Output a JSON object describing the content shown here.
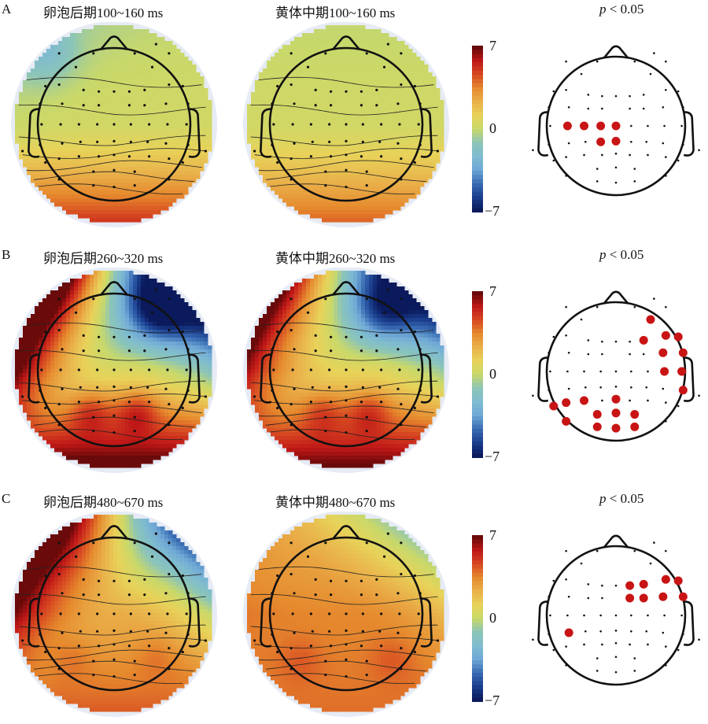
{
  "chart_data": {
    "type": "heatmap",
    "description": "EEG scalp topographic maps (t-values) comparing 卵泡后期 and 黄体中期 across three time windows, with significance maps",
    "colorbar": {
      "min": -7,
      "max": 7,
      "ticks": [
        7,
        0,
        -7
      ],
      "tick_labels": [
        "7",
        "0",
        "−7"
      ],
      "colormap": "jet-like (blue→cyan→yellow→red)"
    },
    "colormap_stops": [
      "#0b1a5c",
      "#1b3f8f",
      "#3a6db4",
      "#6fa8d6",
      "#80bcd0",
      "#8cc5b8",
      "#c9d96a",
      "#e8d35a",
      "#eab14a",
      "#e68a2e",
      "#d84a22",
      "#c01818",
      "#6a0a0a"
    ],
    "electrode_layout_unit": [
      [
        0.55,
        -1.05
      ],
      [
        -0.72,
        -0.93
      ],
      [
        -0.27,
        -0.93
      ],
      [
        0.27,
        -0.93
      ],
      [
        0.72,
        -0.93
      ],
      [
        -0.5,
        -0.75
      ],
      [
        0.5,
        -0.75
      ],
      [
        -0.9,
        -0.5
      ],
      [
        -0.72,
        -0.52
      ],
      [
        -0.4,
        -0.45
      ],
      [
        -0.2,
        -0.43
      ],
      [
        0.0,
        -0.43
      ],
      [
        0.2,
        -0.43
      ],
      [
        0.4,
        -0.45
      ],
      [
        0.72,
        -0.52
      ],
      [
        0.9,
        -0.5
      ],
      [
        -0.97,
        -0.27
      ],
      [
        -0.68,
        -0.27
      ],
      [
        -0.4,
        -0.25
      ],
      [
        -0.2,
        -0.25
      ],
      [
        0.2,
        -0.25
      ],
      [
        0.4,
        -0.25
      ],
      [
        0.68,
        -0.27
      ],
      [
        0.97,
        -0.27
      ],
      [
        -0.95,
        0.0
      ],
      [
        -0.7,
        0.0
      ],
      [
        -0.46,
        0.0
      ],
      [
        -0.22,
        0.0
      ],
      [
        0.0,
        0.0
      ],
      [
        0.22,
        0.0
      ],
      [
        0.46,
        0.0
      ],
      [
        0.7,
        0.0
      ],
      [
        0.95,
        0.0
      ],
      [
        -0.97,
        0.27
      ],
      [
        -0.68,
        0.25
      ],
      [
        -0.44,
        0.23
      ],
      [
        -0.22,
        0.23
      ],
      [
        0.0,
        0.22
      ],
      [
        0.22,
        0.23
      ],
      [
        0.44,
        0.23
      ],
      [
        0.68,
        0.25
      ],
      [
        0.97,
        0.27
      ],
      [
        -1.2,
        0.35
      ],
      [
        1.2,
        0.35
      ],
      [
        -0.9,
        0.5
      ],
      [
        -0.72,
        0.45
      ],
      [
        -0.46,
        0.42
      ],
      [
        -0.2,
        0.42
      ],
      [
        0.0,
        0.4
      ],
      [
        0.2,
        0.42
      ],
      [
        0.46,
        0.42
      ],
      [
        0.72,
        0.45
      ],
      [
        0.9,
        0.5
      ],
      [
        -0.72,
        0.72
      ],
      [
        -0.27,
        0.62
      ],
      [
        0.0,
        0.6
      ],
      [
        0.27,
        0.62
      ],
      [
        0.72,
        0.72
      ],
      [
        -0.27,
        0.8
      ],
      [
        0.0,
        0.82
      ],
      [
        0.27,
        0.8
      ]
    ],
    "rows": [
      {
        "label": "A",
        "maps": [
          {
            "title": "卵泡后期100~160 ms",
            "field": {
              "front": 0.0,
              "center": 0.05,
              "back": 0.55,
              "left_front": -0.05,
              "right_front": 0.0,
              "hot_spots": [],
              "cold_spots": [
                [
                  -0.9,
                  -0.95,
                  0.25
                ]
              ]
            }
          },
          {
            "title": "黄体中期100~160 ms",
            "field": {
              "front": 0.0,
              "center": 0.05,
              "back": 0.45,
              "left_front": 0.0,
              "right_front": 0.0,
              "hot_spots": [],
              "cold_spots": []
            }
          }
        ],
        "significance": {
          "title_prefix": "p",
          "title_rest": " < 0.05",
          "significant_indices": [
            25,
            26,
            27,
            28,
            36,
            37
          ]
        }
      },
      {
        "label": "B",
        "maps": [
          {
            "title": "卵泡后期260~320 ms",
            "field": {
              "front": -0.6,
              "center": 0.1,
              "back": 0.85,
              "left_front": 0.6,
              "right_front": -1.0,
              "hot_spots": [
                [
                  -0.3,
                  0.55,
                  0.3
                ],
                [
                  0.3,
                  0.55,
                  0.35
                ]
              ],
              "cold_spots": [
                [
                  0.6,
                  -0.8,
                  0.5
                ]
              ]
            }
          },
          {
            "title": "黄体中期260~320 ms",
            "field": {
              "front": -0.5,
              "center": 0.15,
              "back": 0.8,
              "left_front": 0.4,
              "right_front": -0.85,
              "hot_spots": [
                [
                  -0.3,
                  0.55,
                  0.25
                ],
                [
                  0.3,
                  0.55,
                  0.3
                ]
              ],
              "cold_spots": [
                [
                  0.5,
                  -0.8,
                  0.4
                ]
              ]
            }
          }
        ],
        "significance": {
          "title_prefix": "p",
          "title_rest": " < 0.05",
          "significant_indices": [
            13,
            14,
            15,
            22,
            23,
            31,
            32,
            41,
            44,
            45,
            46,
            48,
            53,
            54,
            55,
            56,
            58,
            59,
            60,
            6
          ]
        }
      },
      {
        "label": "C",
        "maps": [
          {
            "title": "卵泡后期480~670 ms",
            "field": {
              "front": 0.05,
              "center": 0.35,
              "back": 0.55,
              "left_front": 0.8,
              "right_front": -0.4,
              "hot_spots": [
                [
                  -0.55,
                  0.55,
                  0.1
                ],
                [
                  0.55,
                  0.55,
                  0.1
                ]
              ],
              "cold_spots": []
            }
          },
          {
            "title": "黄体中期480~670 ms",
            "field": {
              "front": 0.3,
              "center": 0.5,
              "back": 0.55,
              "left_front": 0.35,
              "right_front": 0.05,
              "hot_spots": [
                [
                  -0.6,
                  0.6,
                  0.1
                ],
                [
                  0.6,
                  0.6,
                  0.1
                ]
              ],
              "cold_spots": []
            }
          }
        ],
        "significance": {
          "title_prefix": "p",
          "title_rest": " < 0.05",
          "significant_indices": [
            12,
            13,
            14,
            15,
            20,
            21,
            22,
            23,
            34
          ]
        }
      }
    ]
  }
}
